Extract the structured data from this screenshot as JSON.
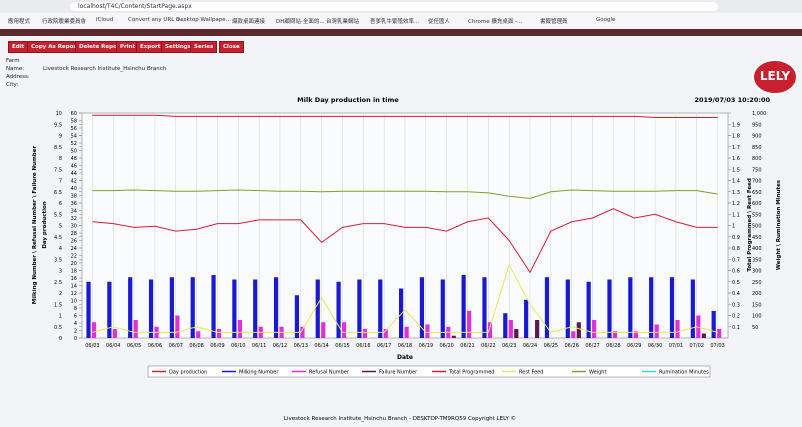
{
  "browser": {
    "url": "localhost/T4C/Content/StartPage.aspx",
    "bookmarks": [
      "應用程式",
      "行政院農業委員會",
      "iCloud",
      "Convert any URL o...",
      "Desktop Wallpape...",
      "爆款桌面連接",
      "DH顧問站-全面的...",
      "台灣乳業網站",
      "吾爹乳牛繁殖效率...",
      "從任匯人",
      "Chrome 擴充桌面 -...",
      "書籤管理員",
      "Google"
    ]
  },
  "toolbar": {
    "buttons": [
      "Edit",
      "Copy As Report",
      "Delete Report",
      "Print",
      "Export",
      "Settings",
      "Series",
      "Close"
    ]
  },
  "info": {
    "farm_label": "Farm",
    "name_label": "Name:",
    "name": "Livestock Research Institute_Hsinchu Branch",
    "address_label": "Address:",
    "city_label": "City:"
  },
  "logo": "LELY",
  "footer": "Livestock Research Institute_Hsinchu Branch - DESKTOP-TM9RQ59 Copyright LELY ©",
  "chart_data": {
    "type": "bar",
    "title": "Milk Day production in time",
    "timestamp": "2019/07/03 10:20:00",
    "x_label": "Date",
    "y_label": "Day production",
    "y2_label": "Total Programmed \\ Rest Feed",
    "y3_label": "Milking Number \\ Refusal Number \\ Failure Number",
    "y4_label": "Weight \\ Rumination Minutes",
    "categories": [
      "06/03",
      "06/04",
      "06/05",
      "06/06",
      "06/07",
      "06/08",
      "06/09",
      "06/10",
      "06/11",
      "06/12",
      "06/13",
      "06/14",
      "06/15",
      "06/16",
      "06/17",
      "06/18",
      "06/19",
      "06/20",
      "06/21",
      "06/22",
      "06/23",
      "06/24",
      "06/25",
      "06/26",
      "06/27",
      "06/28",
      "06/29",
      "06/30",
      "07/01",
      "07/02",
      "07/03"
    ],
    "ylim": [
      0,
      60
    ],
    "yticks": [
      0,
      2,
      4,
      6,
      8,
      10,
      12,
      14,
      16,
      18,
      20,
      22,
      24,
      26,
      28,
      30,
      32,
      34,
      36,
      38,
      40,
      42,
      44,
      46,
      48,
      50,
      52,
      54,
      56,
      58,
      60
    ],
    "y2lim": [
      0,
      2
    ],
    "y2ticks": [
      0.1,
      0.2,
      0.3,
      0.4,
      0.5,
      0.6,
      0.7,
      0.8,
      0.9,
      1,
      1.1,
      1.2,
      1.3,
      1.4,
      1.5,
      1.6,
      1.7,
      1.8,
      1.9
    ],
    "y3lim": [
      0,
      10
    ],
    "y3ticks": [
      0,
      0.5,
      1,
      1.5,
      2,
      2.5,
      3,
      3.5,
      4,
      4.5,
      5,
      5.5,
      6,
      6.5,
      7,
      7.5,
      8,
      8.5,
      9,
      9.5,
      10
    ],
    "y4lim": [
      0,
      1000
    ],
    "y4ticks": [
      50,
      100,
      150,
      200,
      250,
      300,
      350,
      400,
      450,
      500,
      550,
      600,
      650,
      700,
      750,
      800,
      850,
      900,
      950,
      {
        "value": 1000,
        "label": "1,000"
      }
    ],
    "grid": "x",
    "legend": "bottom",
    "series": [
      {
        "name": "Day production",
        "type": "line",
        "axis": "y",
        "color": "#d0203a",
        "values": [
          31,
          30.5,
          29.5,
          29.8,
          28.5,
          29,
          30.5,
          30.5,
          31.5,
          31.5,
          31.5,
          25.5,
          29.5,
          30.5,
          30.5,
          29.5,
          29.5,
          28.5,
          31,
          32,
          26,
          17.5,
          28.5,
          31,
          32,
          34.5,
          32,
          33,
          31,
          29.5,
          29.5
        ]
      },
      {
        "name": "Milking Number",
        "type": "bar",
        "axis": "y3",
        "color": "#1a1ad0",
        "values": [
          2.5,
          2.5,
          2.7,
          2.6,
          2.7,
          2.7,
          2.8,
          2.6,
          2.6,
          2.7,
          1.9,
          2.6,
          2.5,
          2.6,
          2.6,
          2.2,
          2.7,
          2.6,
          2.8,
          2.7,
          1.1,
          1.7,
          2.7,
          2.6,
          2.5,
          2.6,
          2.7,
          2.7,
          2.7,
          2.6,
          1.2
        ]
      },
      {
        "name": "Refusal Number",
        "type": "bar",
        "axis": "y3",
        "color": "#e030d8",
        "values": [
          0.7,
          0.4,
          0.8,
          0.5,
          1.0,
          0.3,
          0.4,
          0.8,
          0.5,
          0.5,
          0.5,
          0.7,
          0.7,
          0.4,
          0.4,
          0.5,
          0.6,
          0.5,
          1.2,
          0.7,
          0.8,
          0,
          0,
          0.3,
          0.8,
          0.3,
          0.3,
          0.6,
          0.8,
          1.0,
          0.4
        ]
      },
      {
        "name": "Failure Number",
        "type": "bar",
        "axis": "y3",
        "color": "#5a1a50",
        "values": [
          0,
          0,
          0,
          0,
          0,
          0,
          0,
          0,
          0,
          0,
          0,
          0,
          0,
          0,
          0,
          0,
          0,
          0.1,
          0,
          0,
          0.4,
          0.8,
          0,
          0.7,
          0,
          0,
          0,
          0,
          0,
          0.2,
          0
        ]
      },
      {
        "name": "Total Programmed",
        "type": "line",
        "axis": "y2",
        "color": "#d0203a",
        "values": [
          1.98,
          1.98,
          1.98,
          1.98,
          1.97,
          1.97,
          1.97,
          1.97,
          1.97,
          1.97,
          1.97,
          1.97,
          1.97,
          1.97,
          1.97,
          1.97,
          1.97,
          1.97,
          1.97,
          1.97,
          1.97,
          1.97,
          1.97,
          1.97,
          1.97,
          1.97,
          1.97,
          1.96,
          1.96,
          1.96,
          1.96
        ]
      },
      {
        "name": "Rest Feed",
        "type": "line",
        "axis": "y2",
        "color": "#e8e860",
        "values": [
          0.05,
          0.1,
          0.05,
          0.05,
          0.05,
          0.1,
          0.05,
          0.05,
          0.05,
          0.05,
          0.05,
          0.36,
          0.05,
          0.05,
          0.05,
          0.25,
          0.05,
          0.05,
          0.05,
          0.05,
          0.65,
          0.3,
          0.05,
          0.1,
          0.05,
          0.05,
          0.05,
          0.05,
          0.05,
          0.1,
          0.05
        ]
      },
      {
        "name": "Weight",
        "type": "line",
        "axis": "y4",
        "color": "#8a9a30",
        "values": [
          655,
          655,
          658,
          655,
          652,
          652,
          655,
          658,
          655,
          652,
          652,
          650,
          652,
          652,
          652,
          652,
          652,
          650,
          650,
          645,
          630,
          620,
          650,
          658,
          655,
          652,
          652,
          652,
          655,
          655,
          640
        ]
      },
      {
        "name": "Rumination Minutes",
        "type": "line",
        "axis": "y4",
        "color": "#40d0e0",
        "values": [
          null,
          null,
          null,
          null,
          null,
          null,
          null,
          null,
          null,
          null,
          null,
          null,
          null,
          null,
          null,
          null,
          null,
          null,
          null,
          null,
          null,
          null,
          null,
          null,
          null,
          null,
          null,
          null,
          null,
          null,
          null
        ]
      }
    ]
  }
}
